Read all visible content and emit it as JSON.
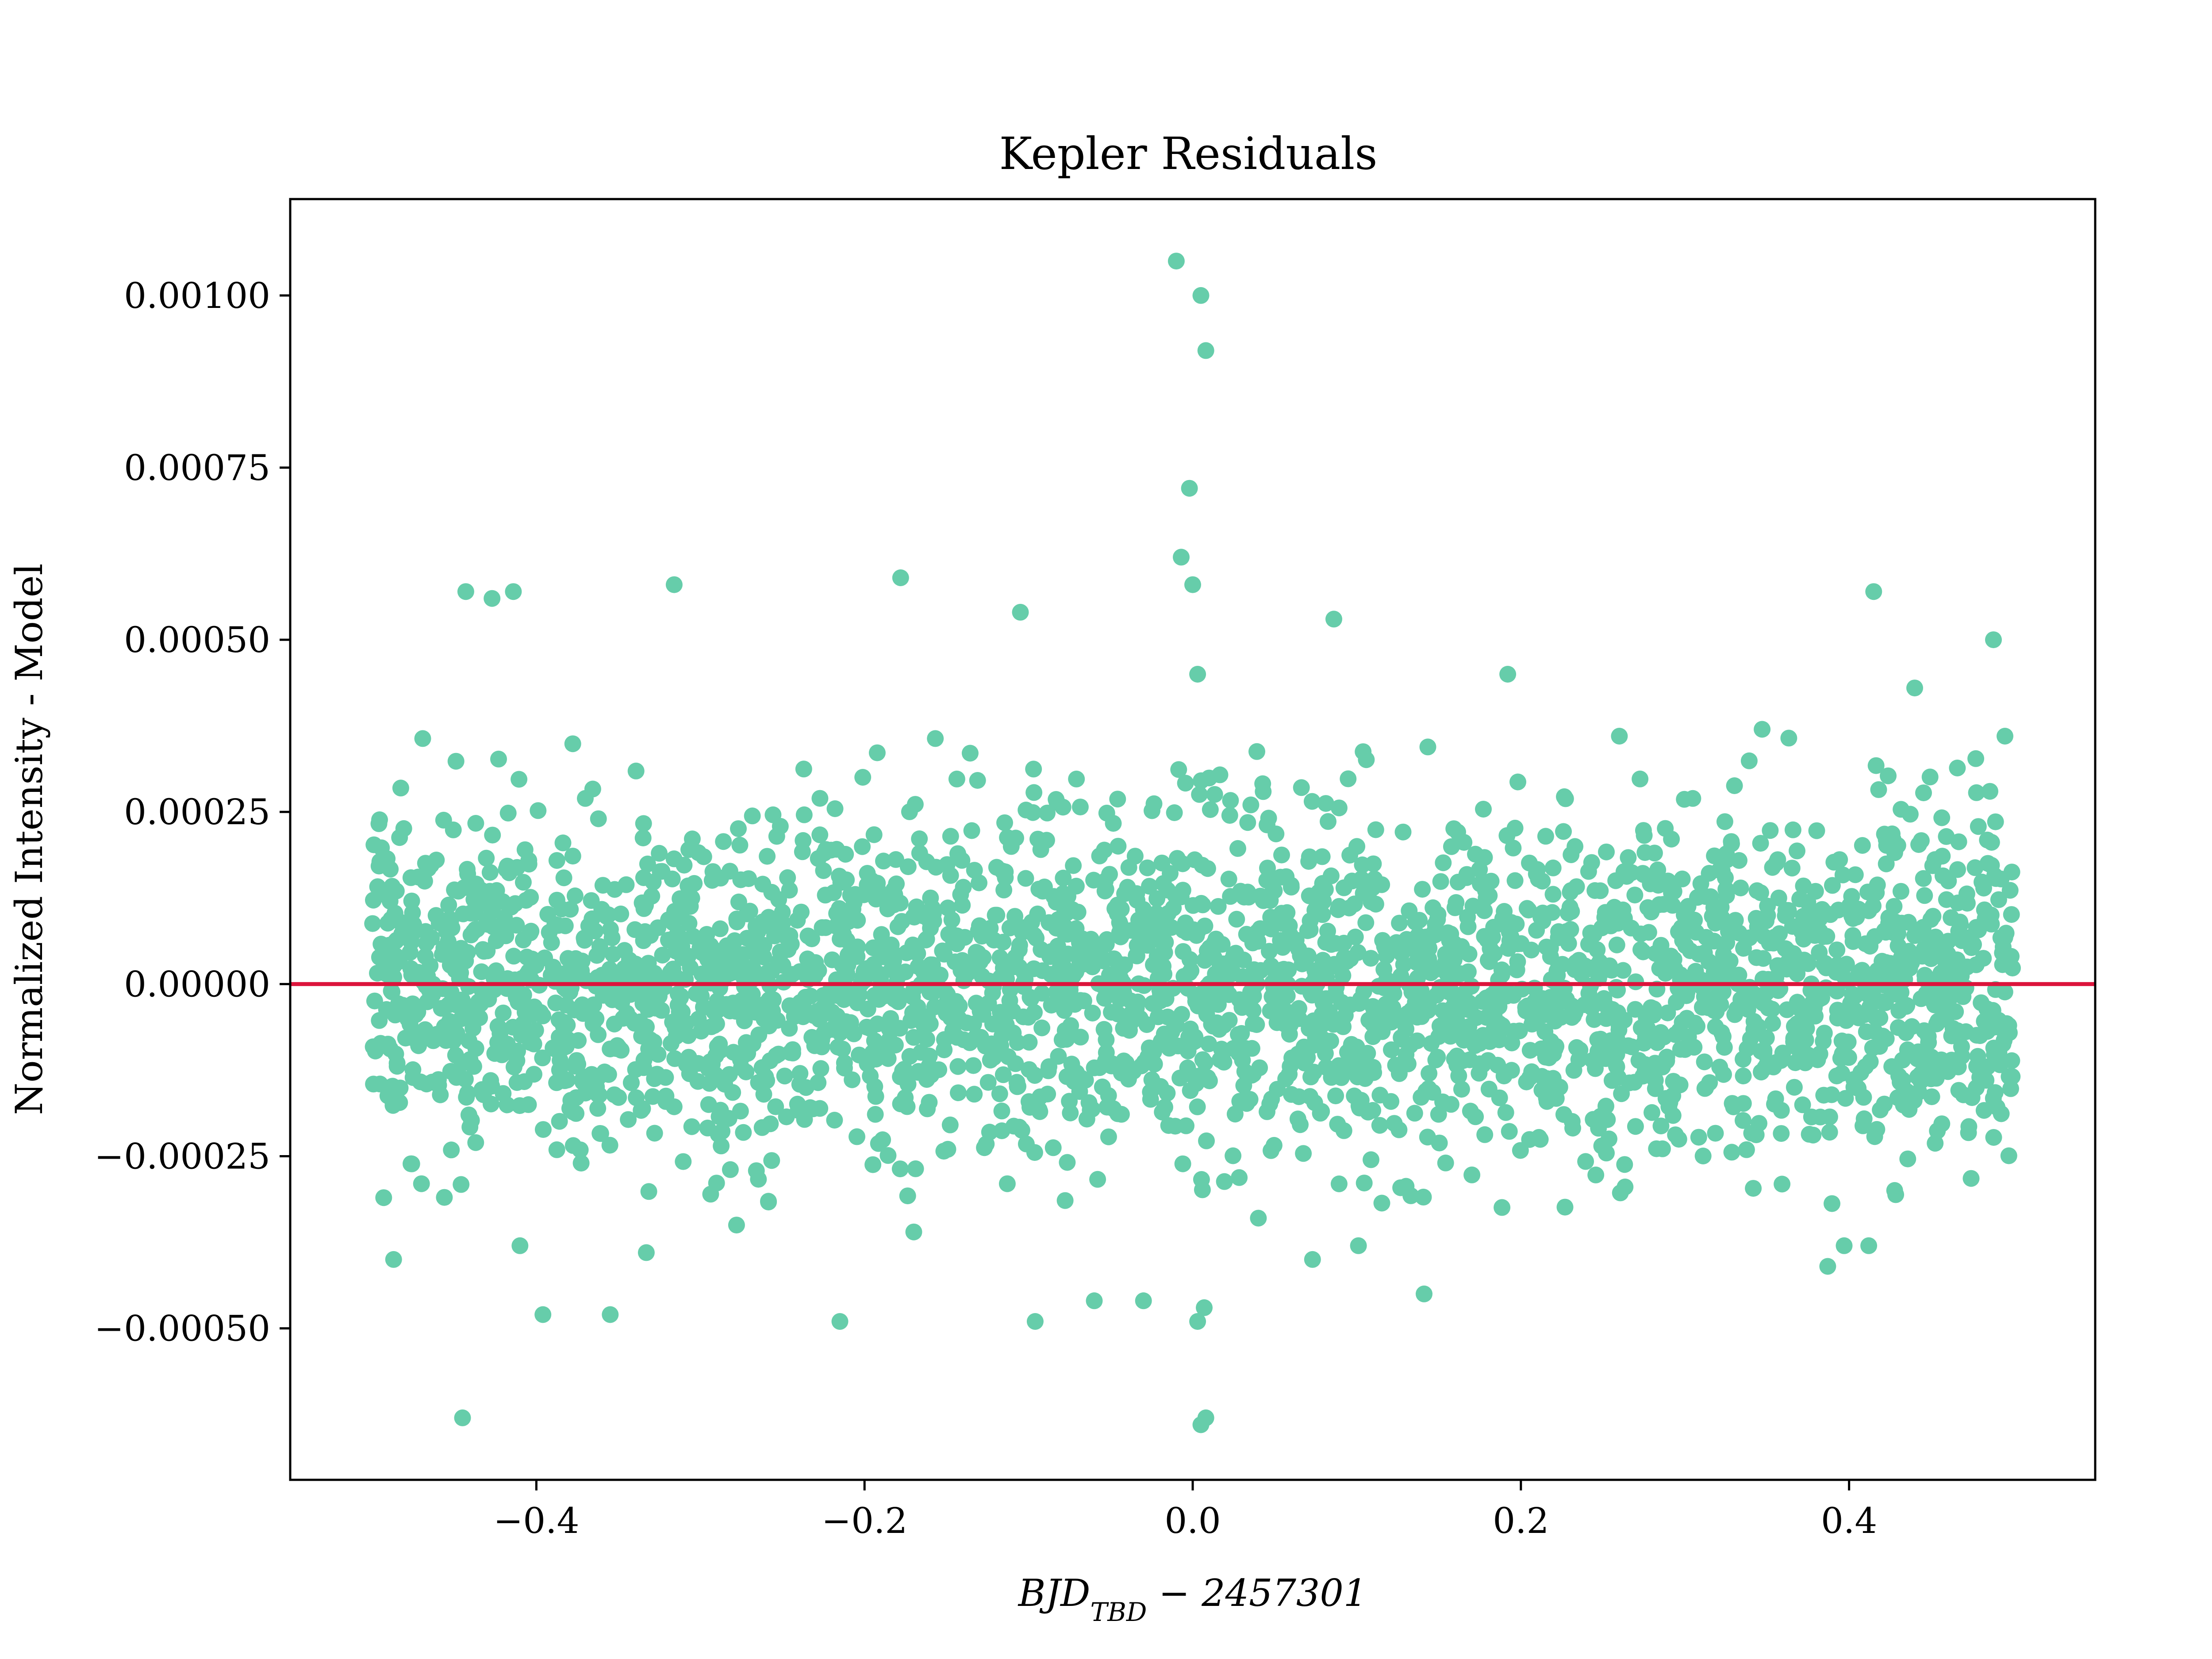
{
  "chart_data": {
    "type": "scatter",
    "title": "Kepler Residuals",
    "xlabel_parts": {
      "main": "BJD",
      "sub": "TBD",
      "rest": " − 2457301"
    },
    "ylabel": "Normalized Intensity - Model",
    "xlim": [
      -0.55,
      0.55
    ],
    "ylim": [
      -0.00072,
      0.00114
    ],
    "xticks": [
      -0.4,
      -0.2,
      0.0,
      0.2,
      0.4
    ],
    "xtick_labels": [
      "−0.4",
      "−0.2",
      "0.0",
      "0.2",
      "0.4"
    ],
    "yticks": [
      -0.0005,
      -0.00025,
      0.0,
      0.00025,
      0.0005,
      0.00075,
      0.001
    ],
    "ytick_labels": [
      "−0.00050",
      "−0.00025",
      "0.00000",
      "0.00025",
      "0.00050",
      "0.00075",
      "0.00100"
    ],
    "grid": false,
    "point_color": "#66cdaa",
    "reference_line": {
      "y": 0.0,
      "color": "#dc143c"
    },
    "scatter_approx": {
      "x_range": [
        -0.5,
        0.5
      ],
      "residual_sigma": 0.00012,
      "point_count": 3000
    },
    "series": [
      {
        "x": [
          -0.01,
          0.005,
          0.008,
          -0.002,
          -0.007,
          0.0,
          0.003,
          -0.443,
          -0.427,
          -0.414,
          -0.316,
          -0.178,
          -0.105,
          0.415,
          0.488,
          -0.445,
          0.008,
          0.005,
          -0.215,
          -0.396,
          -0.355,
          -0.096,
          -0.06,
          -0.03,
          0.003,
          0.007,
          0.141,
          0.073,
          0.101,
          0.387,
          0.397,
          0.412,
          -0.487,
          -0.47,
          -0.41,
          -0.333,
          -0.278,
          -0.17,
          -0.113,
          0.04,
          0.086,
          0.192,
          0.26,
          0.347,
          0.44,
          0.495
        ],
        "y": [
          0.00105,
          0.001,
          0.00092,
          0.00072,
          0.00062,
          0.00058,
          0.00045,
          0.00057,
          0.00056,
          0.00057,
          0.00058,
          0.00059,
          0.00054,
          0.00057,
          0.0005,
          -0.00063,
          -0.00063,
          -0.00064,
          -0.00049,
          -0.00048,
          -0.00048,
          -0.00049,
          -0.00046,
          -0.00046,
          -0.00049,
          -0.00047,
          -0.00045,
          -0.0004,
          -0.00038,
          -0.00041,
          -0.00038,
          -0.00038,
          -0.0004,
          -0.00029,
          -0.00038,
          -0.00039,
          -0.00035,
          -0.00036,
          -0.00029,
          -0.00034,
          0.00053,
          0.00045,
          0.00036,
          0.00037,
          0.00043,
          0.00036
        ]
      }
    ]
  }
}
